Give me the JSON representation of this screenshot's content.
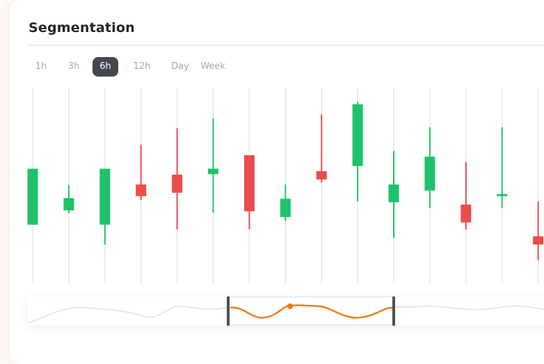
{
  "header": {
    "title": "Segmentation"
  },
  "range_tabs": [
    {
      "label": "1h"
    },
    {
      "label": "3h"
    },
    {
      "label": "6h",
      "selected": true
    },
    {
      "label": "12h"
    },
    {
      "label": "Day"
    },
    {
      "label": "Week"
    }
  ],
  "colors": {
    "up": "#1ec26a",
    "down": "#ec4c4c",
    "accent": "#f07a16",
    "grid": "#e3e8ef",
    "active_tab": "#434850"
  },
  "chart_data": {
    "type": "candlestick",
    "grid": "vertical",
    "candles": [
      {
        "direction": "up",
        "open": 20.12,
        "close": 26.6,
        "high": 26.6,
        "low": 20.12
      },
      {
        "direction": "up",
        "open": 21.77,
        "close": 23.2,
        "high": 24.7,
        "low": 21.45
      },
      {
        "direction": "up",
        "open": 20.12,
        "close": 26.6,
        "high": 26.6,
        "low": 17.82
      },
      {
        "direction": "down",
        "open": 24.77,
        "close": 23.42,
        "high": 29.4,
        "low": 22.95
      },
      {
        "direction": "down",
        "open": 25.91,
        "close": 23.82,
        "high": 31.3,
        "low": 19.55
      },
      {
        "direction": "up",
        "open": 25.98,
        "close": 26.61,
        "high": 32.45,
        "low": 21.52
      },
      {
        "direction": "down",
        "open": 28.17,
        "close": 21.67,
        "high": 28.17,
        "low": 19.55
      },
      {
        "direction": "up",
        "open": 21.0,
        "close": 23.12,
        "high": 24.77,
        "low": 20.55
      },
      {
        "direction": "down",
        "open": 26.32,
        "close": 25.36,
        "high": 32.9,
        "low": 24.97
      },
      {
        "direction": "up",
        "open": 26.92,
        "close": 34.07,
        "high": 34.4,
        "low": 22.82
      },
      {
        "direction": "up",
        "open": 22.72,
        "close": 24.77,
        "high": 28.67,
        "low": 18.57
      },
      {
        "direction": "up",
        "open": 24.07,
        "close": 28.0,
        "high": 31.4,
        "low": 22.07
      },
      {
        "direction": "down",
        "open": 22.45,
        "close": 20.37,
        "high": 27.4,
        "low": 19.55
      },
      {
        "direction": "up",
        "open": 23.45,
        "close": 23.67,
        "high": 31.4,
        "low": 22.07
      },
      {
        "direction": "down",
        "open": 18.77,
        "close": 17.82,
        "high": 22.82,
        "low": 16.0
      }
    ]
  },
  "navigator": {
    "window_start": 0.378,
    "window_end": 0.693
  }
}
